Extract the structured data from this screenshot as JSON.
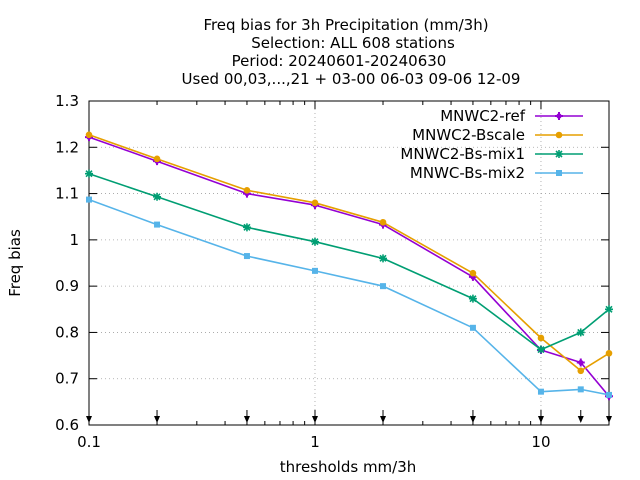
{
  "chart_data": {
    "type": "line",
    "title_lines": [
      "Freq bias  for 3h Precipitation (mm/3h)",
      "Selection: ALL    608 stations",
      "Period: 20240601-20240630",
      "Used 00,03,...,21 + 03-00 06-03 09-06 12-09"
    ],
    "xlabel": "thresholds mm/3h",
    "ylabel": "Freq bias",
    "xscale": "log",
    "xlim": [
      0.1,
      20
    ],
    "ylim": [
      0.6,
      1.3
    ],
    "x_ticks": [
      0.1,
      1,
      10
    ],
    "x_tick_labels": [
      "0.1",
      "1",
      "10"
    ],
    "y_ticks": [
      0.6,
      0.7,
      0.8,
      0.9,
      1.0,
      1.1,
      1.2,
      1.3
    ],
    "y_tick_labels": [
      "0.6",
      "0.7",
      "0.8",
      "0.9",
      "1",
      "1.1",
      "1.2",
      "1.3"
    ],
    "grid": true,
    "legend_position": "top-right",
    "threshold_markers": [
      0.1,
      0.2,
      0.5,
      1,
      2,
      5,
      10,
      15,
      20
    ],
    "x": [
      0.1,
      0.2,
      0.5,
      1,
      2,
      5,
      10,
      15,
      20
    ],
    "series": [
      {
        "name": "MNWC2-ref",
        "color": "#9400d3",
        "marker": "plus",
        "values": [
          1.222,
          1.17,
          1.1,
          1.075,
          1.033,
          0.92,
          0.762,
          0.735,
          0.662
        ]
      },
      {
        "name": "MNWC2-Bscale",
        "color": "#e69f00",
        "marker": "circle",
        "values": [
          1.227,
          1.175,
          1.107,
          1.08,
          1.038,
          0.928,
          0.788,
          0.717,
          0.755
        ]
      },
      {
        "name": "MNWC2-Bs-mix1",
        "color": "#009e73",
        "marker": "star",
        "values": [
          1.143,
          1.093,
          1.027,
          0.996,
          0.96,
          0.873,
          0.763,
          0.8,
          0.85
        ]
      },
      {
        "name": "MNWC-Bs-mix2",
        "color": "#56b4e9",
        "marker": "square",
        "values": [
          1.087,
          1.033,
          0.965,
          0.933,
          0.9,
          0.81,
          0.672,
          0.677,
          0.665
        ]
      }
    ]
  }
}
